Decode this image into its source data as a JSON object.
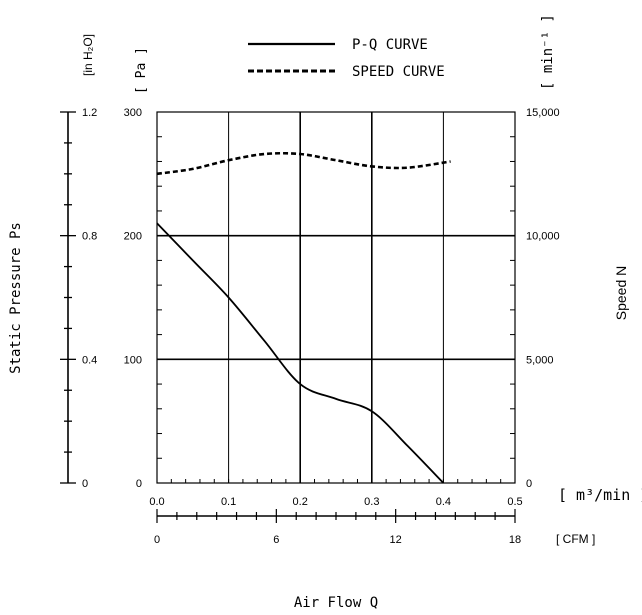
{
  "chart_data": {
    "type": "line",
    "legend": {
      "placement": "top-center",
      "entries": [
        "P-Q CURVE",
        "SPEED CURVE"
      ]
    },
    "x": {
      "label": "Air Flow Q",
      "unit": "[ m³/min ]",
      "range": [
        0.0,
        0.5
      ],
      "ticks": [
        "0.0",
        "0.1",
        "0.2",
        "0.3",
        "0.4",
        "0.5"
      ]
    },
    "x_secondary": {
      "unit": "[ CFM ]",
      "range": [
        0,
        18
      ],
      "ticks": [
        "0",
        "6",
        "12",
        "18"
      ]
    },
    "y_left": {
      "label": "Static Pressure Ps",
      "unit": "[ Pa ]",
      "range": [
        0,
        300
      ],
      "ticks": [
        "0",
        "100",
        "200",
        "300"
      ]
    },
    "y_left_secondary": {
      "unit": "[in H₂O]",
      "range": [
        0,
        1.2
      ],
      "ticks": [
        "0",
        "0.4",
        "0.8",
        "1.2"
      ]
    },
    "y_right": {
      "label": "Speed N",
      "unit": "[ min⁻¹ ]",
      "range": [
        0,
        15000
      ],
      "ticks": [
        "0",
        "5,000",
        "10,000",
        "15,000"
      ]
    },
    "grid": true,
    "series": [
      {
        "name": "P-Q CURVE",
        "axis": "y_left",
        "style": "solid",
        "x": [
          0.0,
          0.05,
          0.1,
          0.15,
          0.2,
          0.25,
          0.3,
          0.35,
          0.4
        ],
        "y": [
          210,
          180,
          150,
          115,
          80,
          68,
          58,
          30,
          0
        ]
      },
      {
        "name": "SPEED CURVE",
        "axis": "y_right",
        "style": "dashed",
        "x": [
          0.0,
          0.05,
          0.1,
          0.15,
          0.2,
          0.25,
          0.3,
          0.35,
          0.41
        ],
        "y": [
          12500,
          12700,
          13050,
          13300,
          13300,
          13050,
          12800,
          12750,
          13000
        ]
      }
    ]
  }
}
